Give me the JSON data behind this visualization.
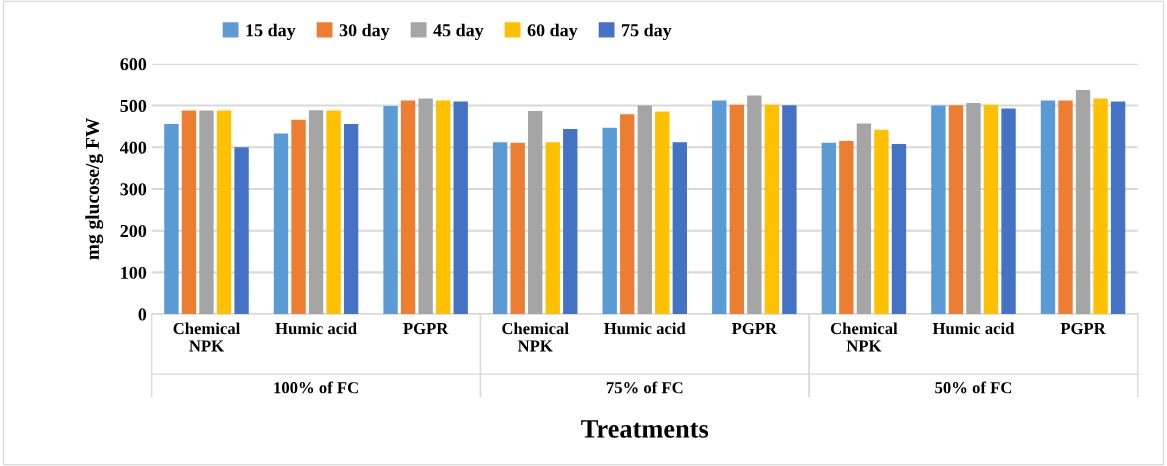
{
  "chart_data": {
    "type": "bar",
    "xlabel": "Treatments",
    "ylabel": "mg glucose/g FW",
    "categories": [
      "Chemical\nNPK",
      "Humic acid",
      "PGPR",
      "Chemical\nNPK",
      "Humic acid",
      "PGPR",
      "Chemical\nNPK",
      "Humic acid",
      "PGPR"
    ],
    "annotations": [
      "100% of FC",
      "75% of FC",
      "50% of FC"
    ],
    "series": [
      {
        "name": "15 day",
        "color": "#5b9bd5",
        "values": [
          456,
          433,
          499,
          412,
          447,
          512,
          411,
          500,
          512
        ]
      },
      {
        "name": "30 day",
        "color": "#ed7d31",
        "values": [
          488,
          466,
          512,
          411,
          479,
          502,
          415,
          501,
          512
        ]
      },
      {
        "name": "45 day",
        "color": "#a5a5a5",
        "values": [
          488,
          489,
          517,
          487,
          500,
          524,
          457,
          506,
          537
        ]
      },
      {
        "name": "60 day",
        "color": "#ffc000",
        "values": [
          488,
          488,
          512,
          412,
          486,
          502,
          442,
          502,
          517
        ]
      },
      {
        "name": "75 day",
        "color": "#4472c4",
        "values": [
          400,
          456,
          510,
          444,
          412,
          501,
          408,
          493,
          510
        ]
      }
    ],
    "ylim": [
      0,
      600
    ],
    "yticks": [
      0,
      100,
      200,
      300,
      400,
      500,
      600
    ],
    "grid": "y",
    "legend": "top"
  }
}
